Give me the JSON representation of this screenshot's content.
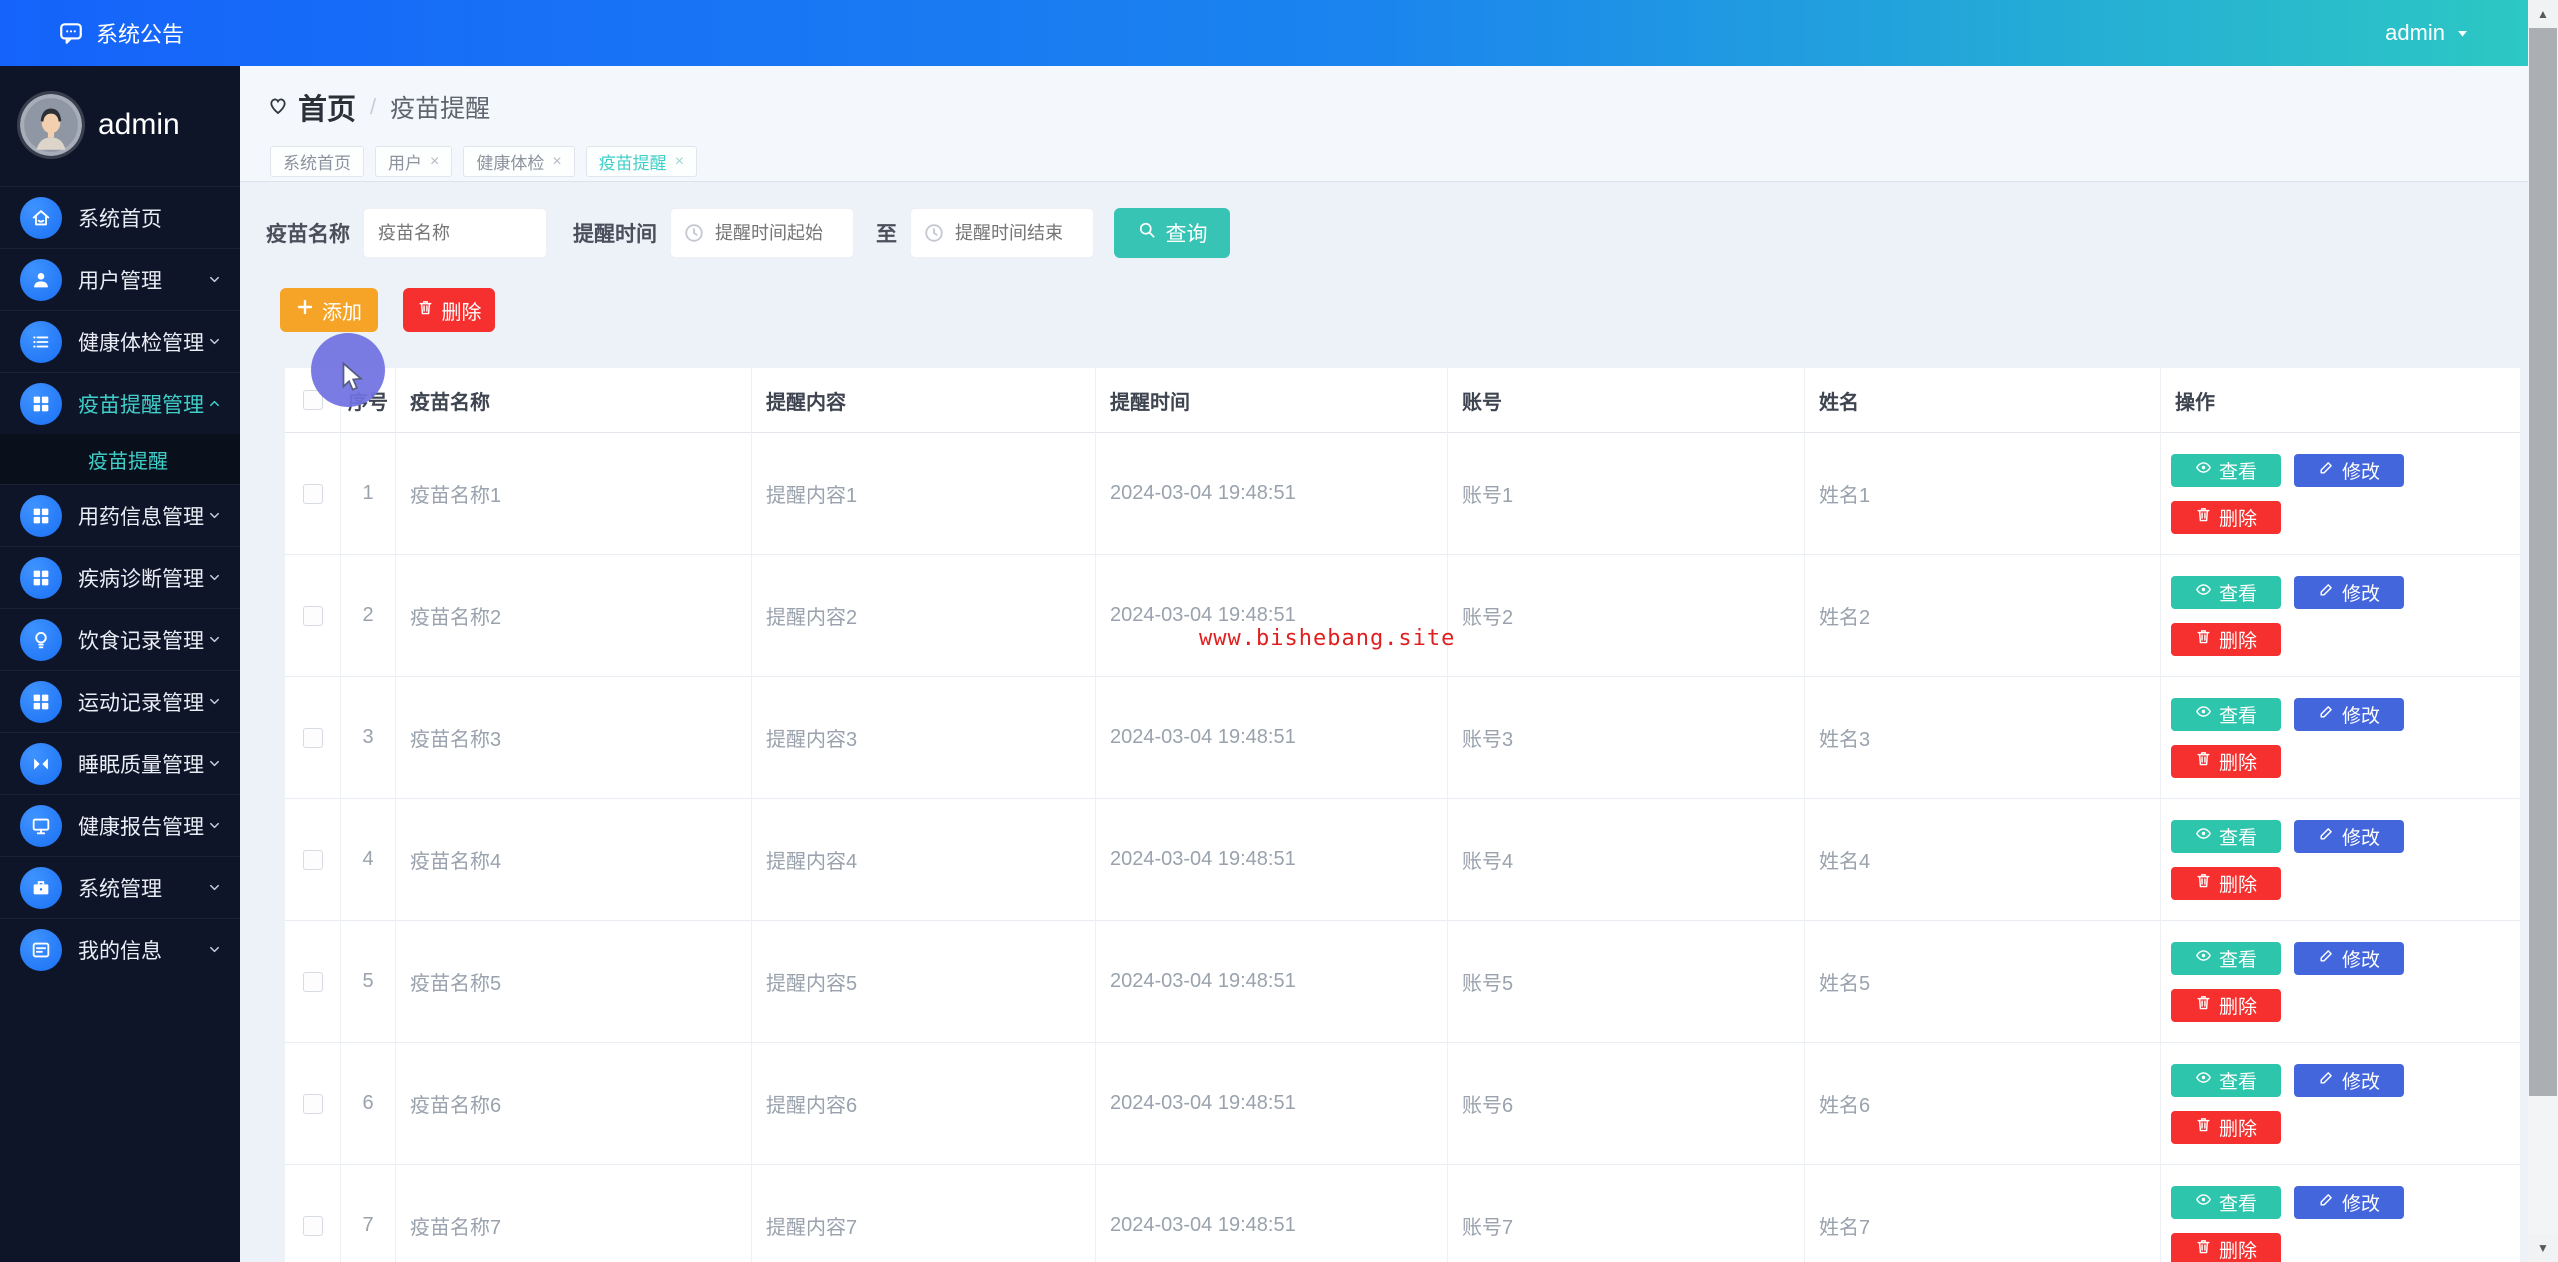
{
  "topbar": {
    "announcement": "系统公告",
    "user": "admin"
  },
  "sidebar": {
    "profile_name": "admin",
    "items": [
      {
        "label": "系统首页",
        "icon": "home-icon"
      },
      {
        "label": "用户管理",
        "icon": "user-icon",
        "chevron": "down"
      },
      {
        "label": "健康体检管理",
        "icon": "list-icon",
        "chevron": "down"
      },
      {
        "label": "疫苗提醒管理",
        "icon": "grid-icon",
        "chevron": "up",
        "active": true
      },
      {
        "label": "疫苗提醒",
        "type": "sub",
        "active": true
      },
      {
        "label": "用药信息管理",
        "icon": "grid-icon",
        "chevron": "down"
      },
      {
        "label": "疾病诊断管理",
        "icon": "grid-icon",
        "chevron": "down"
      },
      {
        "label": "饮食记录管理",
        "icon": "bulb-icon",
        "chevron": "down"
      },
      {
        "label": "运动记录管理",
        "icon": "grid-icon",
        "chevron": "down"
      },
      {
        "label": "睡眠质量管理",
        "icon": "sleep-icon",
        "chevron": "down"
      },
      {
        "label": "健康报告管理",
        "icon": "monitor-icon",
        "chevron": "down"
      },
      {
        "label": "系统管理",
        "icon": "briefcase-icon",
        "chevron": "down"
      },
      {
        "label": "我的信息",
        "icon": "card-icon",
        "chevron": "down"
      }
    ]
  },
  "breadcrumb": {
    "home": "首页",
    "separator": "/",
    "current": "疫苗提醒"
  },
  "tabs": [
    {
      "label": "系统首页",
      "closable": false
    },
    {
      "label": "用户",
      "closable": true
    },
    {
      "label": "健康体检",
      "closable": true
    },
    {
      "label": "疫苗提醒",
      "closable": true,
      "active": true
    }
  ],
  "filters": {
    "vaccine_label": "疫苗名称",
    "vaccine_placeholder": "疫苗名称",
    "time_label": "提醒时间",
    "time_start_placeholder": "提醒时间起始",
    "to_label": "至",
    "time_end_placeholder": "提醒时间结束",
    "query_label": "查询"
  },
  "toolbar": {
    "add_label": "添加",
    "delete_label": "删除"
  },
  "table": {
    "headers": [
      "序号",
      "疫苗名称",
      "提醒内容",
      "提醒时间",
      "账号",
      "姓名",
      "操作"
    ],
    "actions": {
      "view": "查看",
      "edit": "修改",
      "delete": "删除"
    },
    "rows": [
      {
        "index": "1",
        "vaccine": "疫苗名称1",
        "content": "提醒内容1",
        "time": "2024-03-04 19:48:51",
        "account": "账号1",
        "name": "姓名1"
      },
      {
        "index": "2",
        "vaccine": "疫苗名称2",
        "content": "提醒内容2",
        "time": "2024-03-04 19:48:51",
        "account": "账号2",
        "name": "姓名2"
      },
      {
        "index": "3",
        "vaccine": "疫苗名称3",
        "content": "提醒内容3",
        "time": "2024-03-04 19:48:51",
        "account": "账号3",
        "name": "姓名3"
      },
      {
        "index": "4",
        "vaccine": "疫苗名称4",
        "content": "提醒内容4",
        "time": "2024-03-04 19:48:51",
        "account": "账号4",
        "name": "姓名4"
      },
      {
        "index": "5",
        "vaccine": "疫苗名称5",
        "content": "提醒内容5",
        "time": "2024-03-04 19:48:51",
        "account": "账号5",
        "name": "姓名5"
      },
      {
        "index": "6",
        "vaccine": "疫苗名称6",
        "content": "提醒内容6",
        "time": "2024-03-04 19:48:51",
        "account": "账号6",
        "name": "姓名6"
      },
      {
        "index": "7",
        "vaccine": "疫苗名称7",
        "content": "提醒内容7",
        "time": "2024-03-04 19:48:51",
        "account": "账号7",
        "name": "姓名7"
      }
    ]
  },
  "watermark": "www.bishebang.site",
  "colors": {
    "topbar_start": "#1563fb",
    "topbar_end": "#2cc8c4",
    "sidebar_bg": "#0f1528",
    "active_teal": "#3fd0c9",
    "primary_blue": "#2479f7",
    "query_btn": "#38c4b5",
    "add_btn": "#f6a428",
    "delete_btn": "#f5302f",
    "view_btn": "#2ec5ad",
    "edit_btn": "#4466dd",
    "watermark_red": "#e02020",
    "cursor_purple": "#7173e2"
  }
}
